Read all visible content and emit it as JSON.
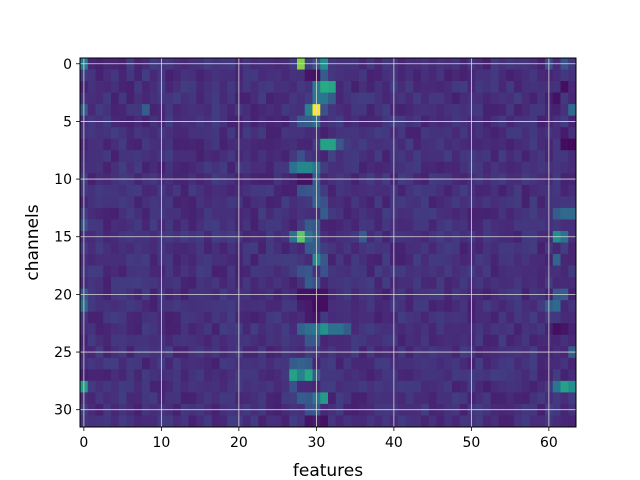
{
  "chart_data": {
    "type": "heatmap",
    "title": "",
    "xlabel": "features",
    "ylabel": "channels",
    "n_cols": 64,
    "n_rows": 32,
    "xlim": [
      -0.5,
      63.5
    ],
    "ylim": [
      31.5,
      -0.5
    ],
    "xticks": [
      0,
      10,
      20,
      30,
      40,
      50,
      60
    ],
    "xtick_labels": [
      "0",
      "10",
      "20",
      "30",
      "40",
      "50",
      "60"
    ],
    "yticks": [
      0,
      5,
      10,
      15,
      20,
      25,
      30
    ],
    "ytick_labels": [
      "0",
      "5",
      "10",
      "15",
      "20",
      "25",
      "30"
    ],
    "grid": true,
    "colormap": "viridis",
    "vmin": 0,
    "vmax": 1,
    "background_value": 0.14,
    "hot_cells": [
      [
        0,
        0,
        0.42
      ],
      [
        0,
        28,
        0.82
      ],
      [
        0,
        30,
        0.26
      ],
      [
        0,
        31,
        0.5
      ],
      [
        0,
        60,
        0.24
      ],
      [
        0,
        62,
        0.26
      ],
      [
        1,
        29,
        0.06
      ],
      [
        1,
        30,
        0.05
      ],
      [
        1,
        31,
        0.3
      ],
      [
        2,
        30,
        0.42
      ],
      [
        2,
        31,
        0.62
      ],
      [
        2,
        32,
        0.6
      ],
      [
        2,
        62,
        0.04
      ],
      [
        3,
        30,
        0.4
      ],
      [
        3,
        31,
        0.4
      ],
      [
        3,
        32,
        0.3
      ],
      [
        3,
        61,
        0.05
      ],
      [
        4,
        0,
        0.3
      ],
      [
        4,
        8,
        0.3
      ],
      [
        4,
        29,
        0.45
      ],
      [
        4,
        30,
        1.0
      ],
      [
        4,
        31,
        0.25
      ],
      [
        4,
        63,
        0.35
      ],
      [
        5,
        28,
        0.28
      ],
      [
        5,
        29,
        0.3
      ],
      [
        5,
        30,
        0.35
      ],
      [
        6,
        62,
        0.08
      ],
      [
        7,
        31,
        0.58
      ],
      [
        7,
        32,
        0.58
      ],
      [
        7,
        33,
        0.28
      ],
      [
        7,
        62,
        0.03
      ],
      [
        7,
        63,
        0.02
      ],
      [
        8,
        28,
        0.25
      ],
      [
        8,
        32,
        0.2
      ],
      [
        9,
        27,
        0.38
      ],
      [
        9,
        28,
        0.46
      ],
      [
        9,
        29,
        0.46
      ],
      [
        9,
        30,
        0.4
      ],
      [
        10,
        28,
        0.05
      ],
      [
        10,
        29,
        0.05
      ],
      [
        10,
        30,
        0.3
      ],
      [
        11,
        28,
        0.25
      ],
      [
        11,
        29,
        0.28
      ],
      [
        11,
        30,
        0.3
      ],
      [
        12,
        30,
        0.32
      ],
      [
        12,
        31,
        0.25
      ],
      [
        13,
        31,
        0.3
      ],
      [
        13,
        61,
        0.3
      ],
      [
        13,
        62,
        0.35
      ],
      [
        13,
        63,
        0.35
      ],
      [
        14,
        0,
        0.25
      ],
      [
        14,
        29,
        0.3
      ],
      [
        14,
        30,
        0.28
      ],
      [
        15,
        27,
        0.38
      ],
      [
        15,
        28,
        0.75
      ],
      [
        15,
        29,
        0.4
      ],
      [
        15,
        30,
        0.3
      ],
      [
        15,
        36,
        0.3
      ],
      [
        15,
        61,
        0.5
      ],
      [
        15,
        62,
        0.38
      ],
      [
        16,
        29,
        0.28
      ],
      [
        16,
        30,
        0.3
      ],
      [
        17,
        30,
        0.48
      ],
      [
        17,
        31,
        0.28
      ],
      [
        17,
        61,
        0.32
      ],
      [
        18,
        28,
        0.25
      ],
      [
        18,
        29,
        0.28
      ],
      [
        18,
        31,
        0.25
      ],
      [
        19,
        29,
        0.3
      ],
      [
        19,
        30,
        0.25
      ],
      [
        20,
        0,
        0.28
      ],
      [
        20,
        28,
        0.05
      ],
      [
        20,
        29,
        0.05
      ],
      [
        20,
        30,
        0.04
      ],
      [
        20,
        31,
        0.05
      ],
      [
        20,
        61,
        0.28
      ],
      [
        20,
        62,
        0.3
      ],
      [
        21,
        0,
        0.35
      ],
      [
        21,
        29,
        0.08
      ],
      [
        21,
        30,
        0.03
      ],
      [
        21,
        31,
        0.04
      ],
      [
        21,
        60,
        0.3
      ],
      [
        21,
        61,
        0.35
      ],
      [
        22,
        29,
        0.08
      ],
      [
        22,
        30,
        0.06
      ],
      [
        23,
        28,
        0.32
      ],
      [
        23,
        29,
        0.38
      ],
      [
        23,
        30,
        0.4
      ],
      [
        23,
        31,
        0.52
      ],
      [
        23,
        32,
        0.38
      ],
      [
        23,
        33,
        0.38
      ],
      [
        23,
        34,
        0.3
      ],
      [
        23,
        60,
        0.1
      ],
      [
        23,
        61,
        0.04
      ],
      [
        23,
        62,
        0.06
      ],
      [
        24,
        29,
        0.28
      ],
      [
        24,
        30,
        0.28
      ],
      [
        25,
        63,
        0.3
      ],
      [
        26,
        27,
        0.3
      ],
      [
        26,
        28,
        0.32
      ],
      [
        26,
        29,
        0.3
      ],
      [
        27,
        27,
        0.58
      ],
      [
        27,
        28,
        0.45
      ],
      [
        27,
        29,
        0.6
      ],
      [
        27,
        30,
        0.3
      ],
      [
        28,
        0,
        0.55
      ],
      [
        28,
        27,
        0.25
      ],
      [
        28,
        61,
        0.4
      ],
      [
        28,
        62,
        0.58
      ],
      [
        28,
        63,
        0.5
      ],
      [
        29,
        28,
        0.3
      ],
      [
        29,
        29,
        0.28
      ],
      [
        29,
        30,
        0.4
      ],
      [
        29,
        31,
        0.55
      ],
      [
        30,
        29,
        0.25
      ],
      [
        30,
        30,
        0.28
      ],
      [
        31,
        29,
        0.06
      ],
      [
        31,
        30,
        0.08
      ],
      [
        31,
        31,
        0.05
      ]
    ]
  }
}
